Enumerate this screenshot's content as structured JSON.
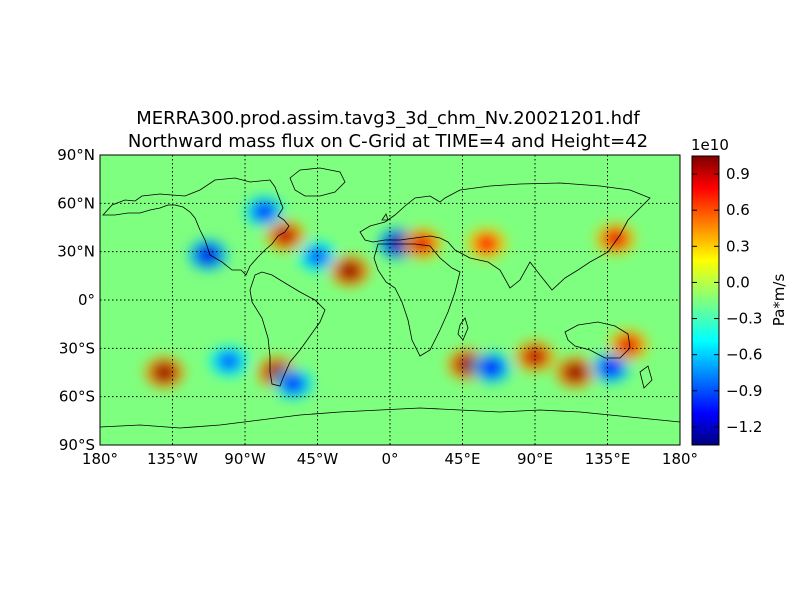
{
  "title_line1": "MERRA300.prod.assim.tavg3_3d_chm_Nv.20021201.hdf",
  "title_line2": "Northward mass flux on C-Grid at TIME=4 and Height=42",
  "map": {
    "projection": "equirectangular",
    "lon_ticks": [
      "180°",
      "135°W",
      "90°W",
      "45°W",
      "0°",
      "45°E",
      "90°E",
      "135°E",
      "180°"
    ],
    "lat_ticks": [
      "90°N",
      "60°N",
      "30°N",
      "0°",
      "30°S",
      "60°S",
      "90°S"
    ],
    "lon_range": [
      -180,
      180
    ],
    "lat_range": [
      -90,
      90
    ],
    "gridlines": "dotted",
    "coastlines": true
  },
  "colorbar": {
    "colormap": "jet",
    "scale_label": "1e10",
    "unit_label": "Pa*m/s",
    "range": [
      -1.35,
      1.05
    ],
    "ticks": [
      {
        "value": 0.9,
        "label": "0.9"
      },
      {
        "value": 0.6,
        "label": "0.6"
      },
      {
        "value": 0.3,
        "label": "0.3"
      },
      {
        "value": 0.0,
        "label": "0.0"
      },
      {
        "value": -0.3,
        "label": "−0.3"
      },
      {
        "value": -0.6,
        "label": "−0.6"
      },
      {
        "value": -0.9,
        "label": "−0.9"
      },
      {
        "value": -1.2,
        "label": "−1.2"
      }
    ]
  },
  "field_features": [
    {
      "lon": -65,
      "lat": 40,
      "value": 0.9
    },
    {
      "lon": -78,
      "lat": 55,
      "value": -0.9
    },
    {
      "lon": -113,
      "lat": 28,
      "value": -1.1
    },
    {
      "lon": -45,
      "lat": 27,
      "value": -0.8
    },
    {
      "lon": -25,
      "lat": 18,
      "value": 1.0
    },
    {
      "lon": 5,
      "lat": 35,
      "value": -1.2
    },
    {
      "lon": 20,
      "lat": 35,
      "value": 0.8
    },
    {
      "lon": 60,
      "lat": 35,
      "value": 0.7
    },
    {
      "lon": 140,
      "lat": 38,
      "value": 0.8
    },
    {
      "lon": -140,
      "lat": -45,
      "value": 1.0
    },
    {
      "lon": -100,
      "lat": -38,
      "value": -0.8
    },
    {
      "lon": -70,
      "lat": -45,
      "value": 1.0
    },
    {
      "lon": -60,
      "lat": -52,
      "value": -0.9
    },
    {
      "lon": 48,
      "lat": -40,
      "value": 1.0
    },
    {
      "lon": 63,
      "lat": -42,
      "value": -1.0
    },
    {
      "lon": 90,
      "lat": -35,
      "value": 0.9
    },
    {
      "lon": 115,
      "lat": -45,
      "value": 1.0
    },
    {
      "lon": 137,
      "lat": -42,
      "value": -1.0
    },
    {
      "lon": 148,
      "lat": -28,
      "value": 0.8
    }
  ]
}
